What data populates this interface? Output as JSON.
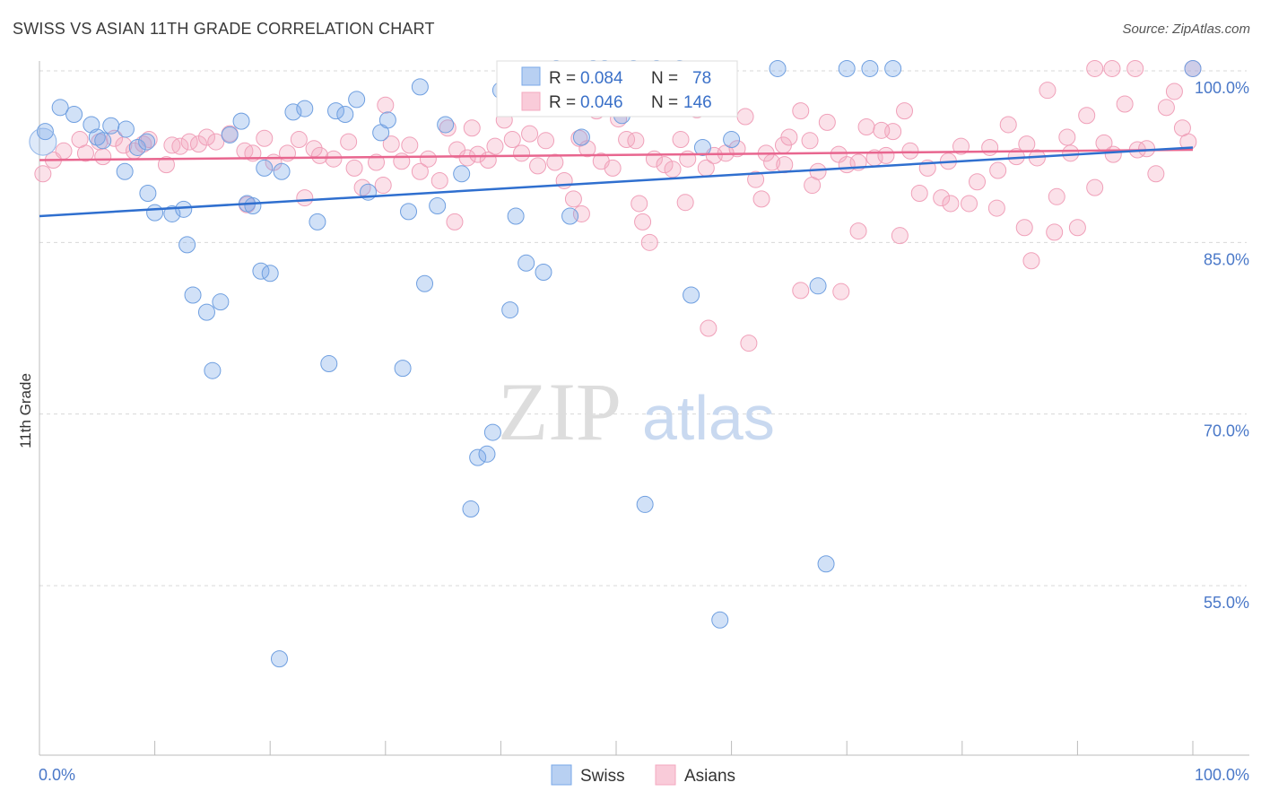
{
  "header": {
    "title": "SWISS VS ASIAN 11TH GRADE CORRELATION CHART",
    "source": "Source: ZipAtlas.com"
  },
  "watermark": {
    "zip": "ZIP",
    "atlas": "atlas"
  },
  "legend_top": {
    "rows": [
      {
        "r_label": "R =",
        "r_value": "0.084",
        "n_label": "N =",
        "n_value": "78"
      },
      {
        "r_label": "R =",
        "r_value": "0.046",
        "n_label": "N =",
        "n_value": "146"
      }
    ]
  },
  "legend_bottom": {
    "items": [
      "Swiss",
      "Asians"
    ]
  },
  "chart_data": {
    "type": "scatter",
    "title": "SWISS VS ASIAN 11TH GRADE CORRELATION CHART",
    "xlabel": "",
    "ylabel": "11th Grade",
    "xlim": [
      0,
      100
    ],
    "ylim": [
      40,
      102
    ],
    "x_tick_labels": [
      "0.0%",
      "100.0%"
    ],
    "y_ticks": [
      {
        "value": 100,
        "label": "100.0%"
      },
      {
        "value": 85,
        "label": "85.0%"
      },
      {
        "value": 70,
        "label": "70.0%"
      },
      {
        "value": 55,
        "label": "55.0%"
      }
    ],
    "grid": "horizontal dashed",
    "colors": {
      "swiss": "#7aa8e8",
      "swiss_line": "#2f6fcf",
      "asians": "#f4a9c0",
      "asians_line": "#e8668f",
      "tick_label": "#4a78c8"
    },
    "series": [
      {
        "name": "Swiss",
        "R": 0.084,
        "N": 78,
        "trend": [
          [
            0,
            87.3
          ],
          [
            100,
            93.3
          ]
        ],
        "points": [
          [
            0.5,
            94.7
          ],
          [
            1.8,
            96.8
          ],
          [
            3,
            96.2
          ],
          [
            4.5,
            95.3
          ],
          [
            5,
            94.2
          ],
          [
            5.5,
            93.9
          ],
          [
            6.2,
            95.2
          ],
          [
            7.5,
            94.9
          ],
          [
            8.5,
            93.3
          ],
          [
            9.3,
            93.8
          ],
          [
            7.4,
            91.2
          ],
          [
            9.4,
            89.3
          ],
          [
            10,
            87.6
          ],
          [
            11.5,
            87.5
          ],
          [
            12.5,
            87.9
          ],
          [
            12.8,
            84.8
          ],
          [
            13.3,
            80.4
          ],
          [
            14.5,
            78.9
          ],
          [
            15,
            73.8
          ],
          [
            15.7,
            79.8
          ],
          [
            16.5,
            94.4
          ],
          [
            17.5,
            95.6
          ],
          [
            18,
            88.4
          ],
          [
            18.5,
            88.2
          ],
          [
            19.2,
            82.5
          ],
          [
            20,
            82.3
          ],
          [
            21,
            91.2
          ],
          [
            22,
            96.4
          ],
          [
            23,
            96.7
          ],
          [
            24.1,
            86.8
          ],
          [
            25.1,
            74.4
          ],
          [
            25.7,
            96.5
          ],
          [
            26.5,
            96.2
          ],
          [
            27.5,
            97.5
          ],
          [
            28.5,
            89.4
          ],
          [
            29.6,
            94.6
          ],
          [
            30.2,
            95.7
          ],
          [
            31.5,
            74.0
          ],
          [
            32,
            87.7
          ],
          [
            33,
            98.6
          ],
          [
            33.4,
            81.4
          ],
          [
            34.5,
            88.2
          ],
          [
            35.2,
            95.3
          ],
          [
            36.6,
            91.0
          ],
          [
            37.4,
            61.7
          ],
          [
            38,
            66.2
          ],
          [
            38.8,
            66.5
          ],
          [
            39.3,
            68.4
          ],
          [
            40,
            98.3
          ],
          [
            40.8,
            79.1
          ],
          [
            41.3,
            87.3
          ],
          [
            42.2,
            83.2
          ],
          [
            43,
            98.6
          ],
          [
            43.7,
            82.4
          ],
          [
            44.8,
            100.2
          ],
          [
            46,
            87.3
          ],
          [
            47,
            94.2
          ],
          [
            48,
            100.2
          ],
          [
            49,
            100.2
          ],
          [
            50.5,
            96.1
          ],
          [
            51.5,
            100.2
          ],
          [
            52.5,
            62.1
          ],
          [
            53.5,
            100.2
          ],
          [
            54.5,
            97.7
          ],
          [
            55.5,
            100.2
          ],
          [
            56.5,
            80.4
          ],
          [
            57.5,
            93.3
          ],
          [
            59,
            52.0
          ],
          [
            60,
            94.0
          ],
          [
            64,
            100.2
          ],
          [
            67.5,
            81.2
          ],
          [
            68.2,
            56.9
          ],
          [
            20.8,
            48.6
          ],
          [
            19.5,
            91.5
          ],
          [
            70,
            100.2
          ],
          [
            72,
            100.2
          ],
          [
            74,
            100.2
          ],
          [
            100,
            100.2
          ]
        ]
      },
      {
        "name": "Asians",
        "R": 0.046,
        "N": 146,
        "trend": [
          [
            0,
            92.2
          ],
          [
            100,
            93.1
          ]
        ],
        "points": [
          [
            0.3,
            91.0
          ],
          [
            1.2,
            92.2
          ],
          [
            2.1,
            93.0
          ],
          [
            3.5,
            94.0
          ],
          [
            4,
            92.8
          ],
          [
            5.2,
            93.8
          ],
          [
            5.5,
            92.5
          ],
          [
            6.5,
            94.1
          ],
          [
            7.3,
            93.5
          ],
          [
            8.2,
            93.0
          ],
          [
            9,
            93.6
          ],
          [
            9.5,
            94.0
          ],
          [
            11,
            91.8
          ],
          [
            11.5,
            93.5
          ],
          [
            12.2,
            93.4
          ],
          [
            13,
            93.8
          ],
          [
            13.8,
            93.6
          ],
          [
            14.5,
            94.2
          ],
          [
            15.3,
            93.8
          ],
          [
            16.5,
            94.5
          ],
          [
            17.8,
            93.0
          ],
          [
            18,
            88.3
          ],
          [
            18.5,
            92.8
          ],
          [
            19.5,
            94.1
          ],
          [
            20.3,
            92.0
          ],
          [
            21.5,
            92.8
          ],
          [
            22.5,
            94.0
          ],
          [
            23,
            88.9
          ],
          [
            23.8,
            93.2
          ],
          [
            24.3,
            92.6
          ],
          [
            25.5,
            92.3
          ],
          [
            26.8,
            93.8
          ],
          [
            27.3,
            91.5
          ],
          [
            28,
            89.8
          ],
          [
            29.2,
            92.0
          ],
          [
            29.8,
            90.0
          ],
          [
            30.5,
            93.6
          ],
          [
            31.4,
            92.1
          ],
          [
            32.1,
            93.5
          ],
          [
            33,
            91.2
          ],
          [
            33.7,
            92.3
          ],
          [
            34.7,
            90.4
          ],
          [
            35.4,
            95.0
          ],
          [
            36.2,
            93.1
          ],
          [
            37.1,
            92.4
          ],
          [
            38,
            92.7
          ],
          [
            38.9,
            92.2
          ],
          [
            39.5,
            93.4
          ],
          [
            40.3,
            95.7
          ],
          [
            41,
            94.0
          ],
          [
            41.8,
            92.8
          ],
          [
            42.5,
            94.5
          ],
          [
            43.2,
            91.7
          ],
          [
            43.9,
            93.9
          ],
          [
            44.7,
            92.0
          ],
          [
            45.5,
            90.4
          ],
          [
            46.3,
            88.8
          ],
          [
            46.8,
            94.1
          ],
          [
            47.5,
            93.2
          ],
          [
            48.3,
            96.5
          ],
          [
            48.7,
            92.1
          ],
          [
            49.7,
            91.5
          ],
          [
            50.2,
            95.8
          ],
          [
            50.9,
            94.0
          ],
          [
            51.7,
            93.9
          ],
          [
            52.3,
            86.8
          ],
          [
            52.9,
            85.0
          ],
          [
            53.3,
            92.3
          ],
          [
            54.2,
            91.8
          ],
          [
            54.9,
            91.4
          ],
          [
            55.6,
            94.0
          ],
          [
            56.2,
            92.3
          ],
          [
            57,
            96.6
          ],
          [
            57.8,
            91.5
          ],
          [
            58.5,
            92.6
          ],
          [
            59.5,
            92.8
          ],
          [
            60.5,
            93.2
          ],
          [
            61.2,
            96.0
          ],
          [
            62.1,
            90.5
          ],
          [
            62.6,
            88.8
          ],
          [
            63.5,
            92.0
          ],
          [
            64.5,
            93.5
          ],
          [
            65,
            94.2
          ],
          [
            66,
            96.5
          ],
          [
            66.8,
            93.9
          ],
          [
            67.5,
            91.2
          ],
          [
            68.3,
            95.5
          ],
          [
            69.3,
            92.7
          ],
          [
            70,
            91.8
          ],
          [
            71,
            86.0
          ],
          [
            71.7,
            95.1
          ],
          [
            72.4,
            92.4
          ],
          [
            73.4,
            92.6
          ],
          [
            74,
            94.7
          ],
          [
            75.5,
            93.0
          ],
          [
            76.3,
            89.3
          ],
          [
            77,
            91.5
          ],
          [
            78.2,
            88.9
          ],
          [
            78.8,
            92.1
          ],
          [
            79.9,
            93.4
          ],
          [
            80.6,
            88.4
          ],
          [
            81.3,
            90.3
          ],
          [
            82.4,
            93.3
          ],
          [
            83.1,
            91.3
          ],
          [
            84,
            95.3
          ],
          [
            84.7,
            92.5
          ],
          [
            85.6,
            93.6
          ],
          [
            86.5,
            92.4
          ],
          [
            87.4,
            98.3
          ],
          [
            88.2,
            89.0
          ],
          [
            89.1,
            94.2
          ],
          [
            90,
            86.3
          ],
          [
            90.8,
            96.1
          ],
          [
            91.5,
            89.8
          ],
          [
            92.3,
            93.7
          ],
          [
            93.1,
            92.7
          ],
          [
            94.1,
            97.1
          ],
          [
            95.2,
            93.1
          ],
          [
            96,
            93.2
          ],
          [
            96.8,
            91.0
          ],
          [
            97.7,
            96.8
          ],
          [
            98.4,
            98.2
          ],
          [
            99.1,
            95.0
          ],
          [
            99.6,
            93.8
          ],
          [
            37.5,
            95.0
          ],
          [
            56,
            88.5
          ],
          [
            30,
            97.0
          ],
          [
            58,
            77.5
          ],
          [
            64.6,
            91.8
          ],
          [
            63,
            92.8
          ],
          [
            67,
            90.0
          ],
          [
            71,
            92.0
          ],
          [
            73,
            94.8
          ],
          [
            75,
            96.5
          ],
          [
            47,
            87.5
          ],
          [
            36,
            86.8
          ],
          [
            52,
            88.4
          ],
          [
            61.5,
            76.2
          ],
          [
            66,
            80.8
          ],
          [
            69.5,
            80.7
          ],
          [
            74.6,
            85.6
          ],
          [
            79,
            88.4
          ],
          [
            83,
            88.0
          ],
          [
            85.4,
            86.3
          ],
          [
            86,
            83.4
          ],
          [
            88,
            85.9
          ],
          [
            89.4,
            92.8
          ],
          [
            91.5,
            100.2
          ],
          [
            93,
            100.2
          ],
          [
            95,
            100.2
          ],
          [
            100,
            100.2
          ]
        ]
      }
    ]
  }
}
